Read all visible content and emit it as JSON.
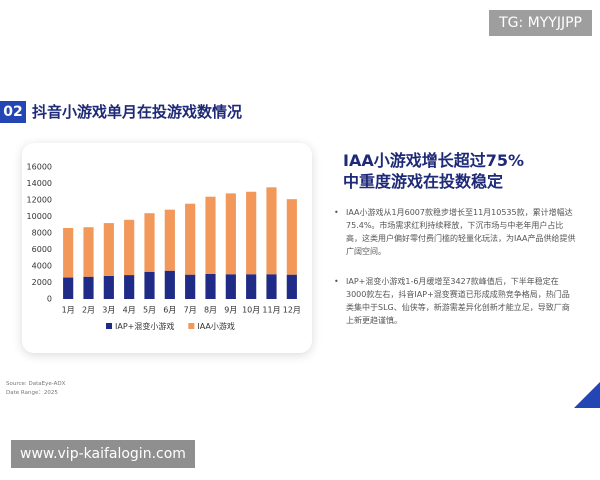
{
  "watermark": "TG: MYYJJPP",
  "header": {
    "number": "02",
    "title": "抖音小游戏单月在投游戏数情况"
  },
  "chart_data": {
    "type": "stacked-bar",
    "categories": [
      "1月",
      "2月",
      "3月",
      "4月",
      "5月",
      "6月",
      "7月",
      "8月",
      "9月",
      "10月",
      "11月",
      "12月"
    ],
    "series": [
      {
        "name": "IAP+混变小游戏",
        "color": "#1f2b86",
        "values": [
          2600,
          2700,
          2800,
          2900,
          3300,
          3427,
          2950,
          3050,
          3000,
          3000,
          3000,
          2950
        ]
      },
      {
        "name": "IAA小游戏",
        "color": "#f2985a",
        "values": [
          6007,
          6000,
          6400,
          6700,
          7100,
          7400,
          8600,
          9350,
          9800,
          10000,
          10535,
          9150
        ]
      }
    ],
    "ylim": [
      0,
      16000
    ],
    "yticks": [
      0,
      2000,
      4000,
      6000,
      8000,
      10000,
      12000,
      14000,
      16000
    ],
    "grid": false,
    "legend": "bottom"
  },
  "panel": {
    "heading": [
      "IAA小游戏增长超过75%",
      "中重度游戏在投数稳定"
    ],
    "bullets": [
      "IAA小游戏从1月6007款稳步增长至11月10535款，累计增幅达75.4%。市场需求红利持续释放，下沉市场与中老年用户占比高，这类用户偏好零付费门槛的轻量化玩法，为IAA产品供给提供广阔空间。",
      "IAP+混变小游戏1-6月缓增至3427款峰值后，下半年稳定在3000款左右，抖音IAP+混变赛道已形成成熟竞争格局，热门品类集中于SLG、仙侠等，新游需差异化创新才能立足，导致厂商上新更趋谨慎。"
    ]
  },
  "source": [
    "Source: DataEye-ADX",
    "Date Range：2025"
  ],
  "footer_url": "www.vip-kaifalogin.com"
}
